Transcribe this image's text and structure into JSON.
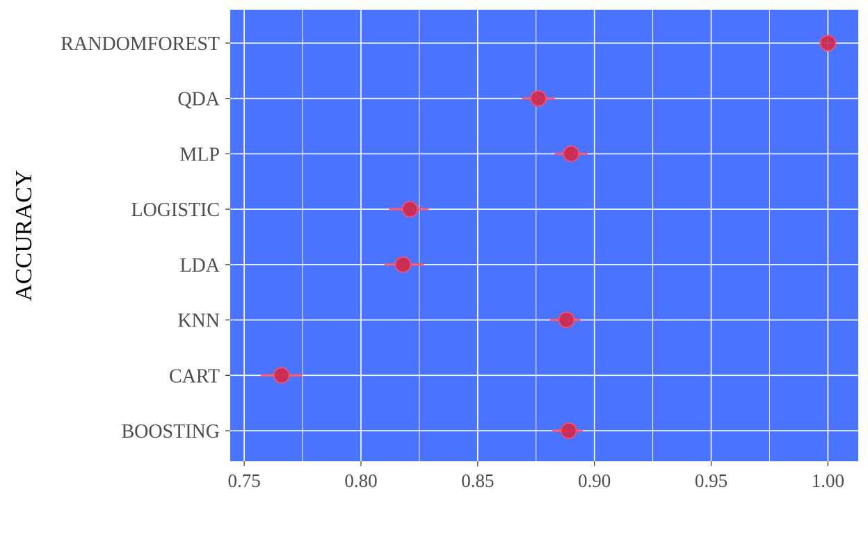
{
  "chart_data": {
    "type": "scatter",
    "title": "",
    "xlabel": "",
    "ylabel": "ACCURACY",
    "xlim": [
      0.744,
      1.013
    ],
    "x_ticks": [
      "0.75",
      "0.80",
      "0.85",
      "0.90",
      "0.95",
      "1.00"
    ],
    "x_tick_values": [
      0.75,
      0.8,
      0.85,
      0.9,
      0.95,
      1.0
    ],
    "categories": [
      "BOOSTING",
      "CART",
      "KNN",
      "LDA",
      "LOGISTIC",
      "MLP",
      "QDA",
      "RANDOMFOREST"
    ],
    "series": [
      {
        "values": [
          0.889,
          0.766,
          0.888,
          0.818,
          0.821,
          0.89,
          0.876,
          1.0
        ],
        "lower": [
          0.882,
          0.757,
          0.881,
          0.81,
          0.812,
          0.883,
          0.869,
          1.0
        ],
        "upper": [
          0.895,
          0.775,
          0.894,
          0.827,
          0.829,
          0.897,
          0.883,
          1.0
        ]
      }
    ],
    "grid": true,
    "legend": "none"
  },
  "colors": {
    "panel_background": "#4A73FF",
    "grid_line": "#FFFFFF",
    "point_fill": "#D2294A",
    "interval_line": "#F0506E",
    "tick_label": "#4D4D4D",
    "axis_title": "#000000"
  }
}
